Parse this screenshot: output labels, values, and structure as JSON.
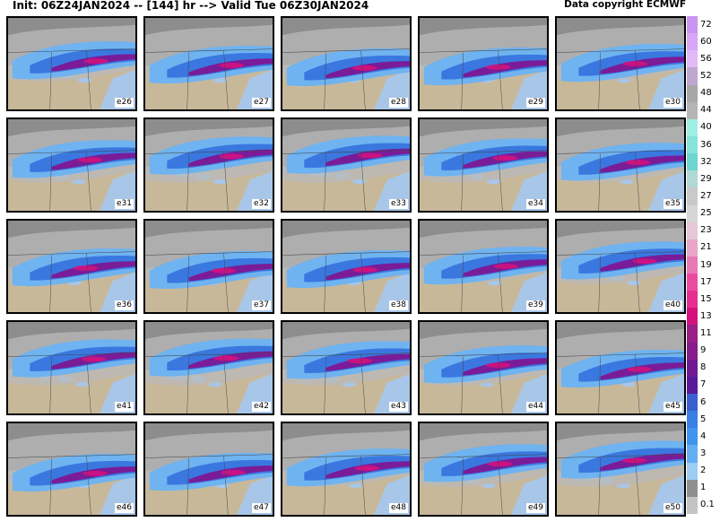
{
  "header": {
    "title": "Init: 06Z24JAN2024 -- [144] hr --> Valid Tue 06Z30JAN2024",
    "copyright": "Data copyright ECMWF"
  },
  "members": [
    "e26",
    "e27",
    "e28",
    "e29",
    "e30",
    "e31",
    "e32",
    "e33",
    "e34",
    "e35",
    "e36",
    "e37",
    "e38",
    "e39",
    "e40",
    "e41",
    "e42",
    "e43",
    "e44",
    "e45",
    "e46",
    "e47",
    "e48",
    "e49",
    "e50"
  ],
  "colorbar": {
    "labels": [
      "72",
      "60",
      "56",
      "52",
      "48",
      "44",
      "40",
      "36",
      "32",
      "29",
      "27",
      "25",
      "23",
      "21",
      "19",
      "17",
      "15",
      "13",
      "11",
      "9",
      "8",
      "7",
      "6",
      "5",
      "4",
      "3",
      "2",
      "1",
      "0.1"
    ],
    "colors": [
      "#c896f0",
      "#d7a6f5",
      "#e2b9f7",
      "#bfa7d2",
      "#a7a7a7",
      "#b4b4b4",
      "#9eeee6",
      "#86e2da",
      "#6ed6d0",
      "#b0d8d4",
      "#c9c9c9",
      "#d6d6d6",
      "#e5c7d8",
      "#e6a6c8",
      "#e878b6",
      "#ec4aa0",
      "#e52e90",
      "#d4127e",
      "#9a1f86",
      "#861c8c",
      "#6f1a92",
      "#59199a",
      "#3a5fd0",
      "#3a7ee6",
      "#3f94ef",
      "#63aef3",
      "#9ccdf3",
      "#8f8f8f",
      "#c4c4c4"
    ],
    "land": "#c8b89a",
    "water": "#a8c6e8"
  }
}
